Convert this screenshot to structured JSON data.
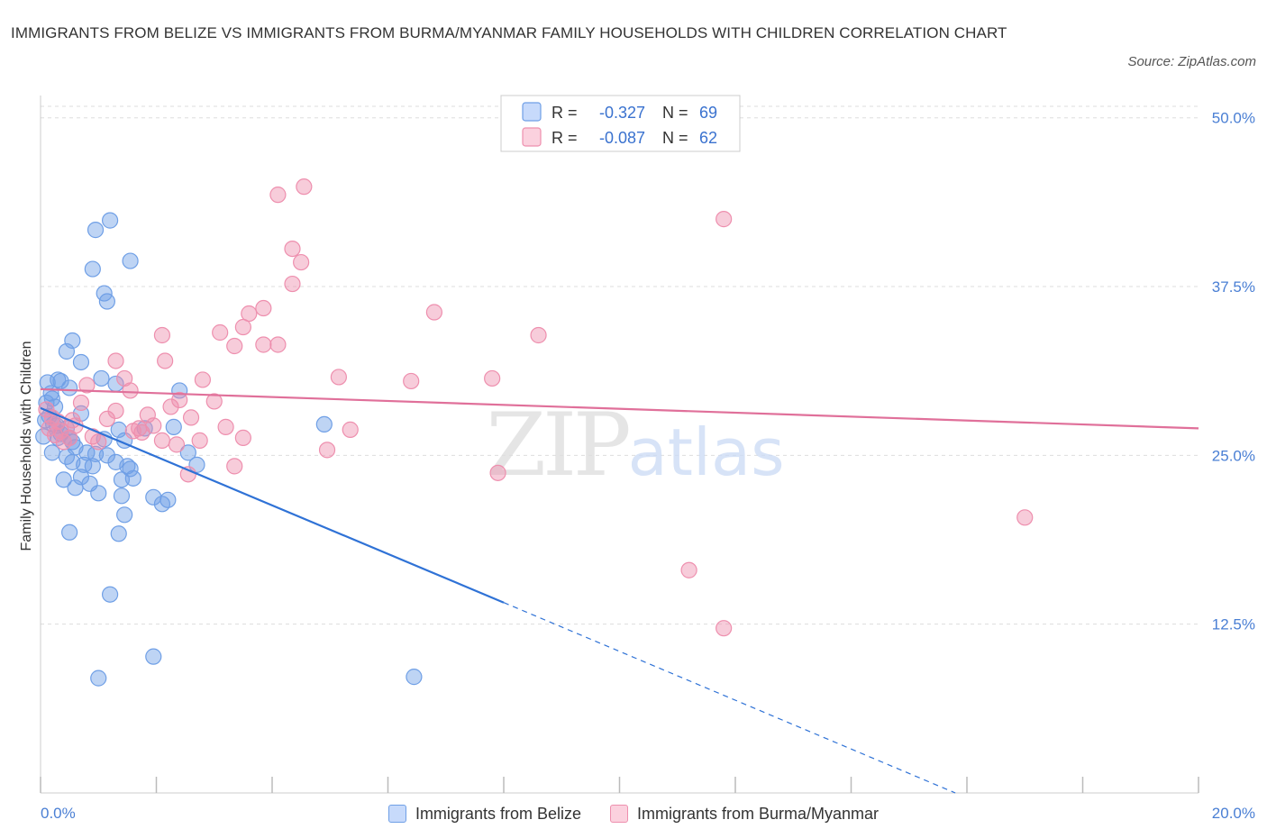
{
  "chart_data": {
    "type": "scatter",
    "title": "IMMIGRANTS FROM BELIZE VS IMMIGRANTS FROM BURMA/MYANMAR FAMILY HOUSEHOLDS WITH CHILDREN CORRELATION CHART",
    "source": "Source: ZipAtlas.com",
    "xlabel": "",
    "ylabel": "Family Households with Children",
    "xlim": [
      0,
      20
    ],
    "ylim": [
      0,
      51.25
    ],
    "x_tick_labels": [
      "0.0%",
      "20.0%"
    ],
    "y_ticks": [
      12.5,
      25.0,
      37.5,
      50.0
    ],
    "y_tick_labels": [
      "12.5%",
      "25.0%",
      "37.5%",
      "50.0%"
    ],
    "watermark": "ZIPatlas",
    "colors": {
      "belize": "#6f9fe6",
      "burma": "#ee8fae",
      "belize_line": "#2f72d6",
      "burma_line": "#e0709a"
    },
    "legend": [
      {
        "r_label": "R =",
        "r_value": "-0.327",
        "n_label": "N =",
        "n_value": "69"
      },
      {
        "r_label": "R =",
        "r_value": "-0.087",
        "n_label": "N =",
        "n_value": "62"
      }
    ],
    "series": [
      {
        "name": "Immigrants from Belize",
        "trend": {
          "x": [
            0,
            8.0,
            15.8
          ],
          "y": [
            28.5,
            14.1,
            0.0
          ],
          "solid_until": 8.0
        },
        "points": [
          [
            0.12,
            30.4
          ],
          [
            0.18,
            29.6
          ],
          [
            0.2,
            29.2
          ],
          [
            0.25,
            28.6
          ],
          [
            0.1,
            28.9
          ],
          [
            0.15,
            27.9
          ],
          [
            0.08,
            27.6
          ],
          [
            0.22,
            27.3
          ],
          [
            0.28,
            27.2
          ],
          [
            0.35,
            26.6
          ],
          [
            0.05,
            26.4
          ],
          [
            0.3,
            26.3
          ],
          [
            0.45,
            27.0
          ],
          [
            0.5,
            26.3
          ],
          [
            0.2,
            25.2
          ],
          [
            0.3,
            30.6
          ],
          [
            0.35,
            30.5
          ],
          [
            0.5,
            30.0
          ],
          [
            0.7,
            28.1
          ],
          [
            0.55,
            26.0
          ],
          [
            0.6,
            25.6
          ],
          [
            0.45,
            24.9
          ],
          [
            0.55,
            24.5
          ],
          [
            0.75,
            24.3
          ],
          [
            0.9,
            24.2
          ],
          [
            0.7,
            23.4
          ],
          [
            0.4,
            23.2
          ],
          [
            0.6,
            22.6
          ],
          [
            0.85,
            22.9
          ],
          [
            1.0,
            22.2
          ],
          [
            0.8,
            25.2
          ],
          [
            0.95,
            25.1
          ],
          [
            1.15,
            25.0
          ],
          [
            1.3,
            24.5
          ],
          [
            1.5,
            24.2
          ],
          [
            1.55,
            24.0
          ],
          [
            1.6,
            23.3
          ],
          [
            1.4,
            23.2
          ],
          [
            1.1,
            26.2
          ],
          [
            1.35,
            26.9
          ],
          [
            1.45,
            26.1
          ],
          [
            1.8,
            27.0
          ],
          [
            1.95,
            21.9
          ],
          [
            2.2,
            21.7
          ],
          [
            2.1,
            21.4
          ],
          [
            2.55,
            25.2
          ],
          [
            2.7,
            24.3
          ],
          [
            2.3,
            27.1
          ],
          [
            2.4,
            29.8
          ],
          [
            1.05,
            30.7
          ],
          [
            1.3,
            30.3
          ],
          [
            0.7,
            31.9
          ],
          [
            0.45,
            32.7
          ],
          [
            0.55,
            33.5
          ],
          [
            1.1,
            37.0
          ],
          [
            1.15,
            36.4
          ],
          [
            0.9,
            38.8
          ],
          [
            1.55,
            39.4
          ],
          [
            0.95,
            41.7
          ],
          [
            1.2,
            42.4
          ],
          [
            1.4,
            22.0
          ],
          [
            1.45,
            20.6
          ],
          [
            1.35,
            19.2
          ],
          [
            0.5,
            19.3
          ],
          [
            1.2,
            14.7
          ],
          [
            1.0,
            8.5
          ],
          [
            1.95,
            10.1
          ],
          [
            6.45,
            8.6
          ],
          [
            4.9,
            27.3
          ]
        ]
      },
      {
        "name": "Immigrants from Burma/Myanmar",
        "trend": {
          "x": [
            0,
            20
          ],
          "y": [
            29.9,
            27.0
          ]
        },
        "points": [
          [
            0.1,
            28.4
          ],
          [
            0.2,
            27.8
          ],
          [
            0.3,
            27.5
          ],
          [
            0.15,
            27.0
          ],
          [
            0.35,
            26.8
          ],
          [
            0.25,
            26.5
          ],
          [
            0.4,
            26.0
          ],
          [
            0.5,
            26.3
          ],
          [
            0.55,
            27.6
          ],
          [
            0.7,
            28.9
          ],
          [
            0.8,
            30.2
          ],
          [
            0.9,
            26.4
          ],
          [
            1.0,
            26.0
          ],
          [
            1.15,
            27.7
          ],
          [
            1.3,
            28.3
          ],
          [
            1.45,
            30.7
          ],
          [
            1.55,
            29.8
          ],
          [
            1.7,
            27.0
          ],
          [
            1.85,
            28.0
          ],
          [
            1.75,
            26.7
          ],
          [
            1.95,
            27.2
          ],
          [
            2.1,
            26.1
          ],
          [
            2.25,
            28.6
          ],
          [
            2.4,
            29.1
          ],
          [
            2.6,
            27.8
          ],
          [
            2.75,
            26.1
          ],
          [
            2.55,
            23.6
          ],
          [
            2.8,
            30.6
          ],
          [
            3.0,
            29.0
          ],
          [
            3.2,
            27.1
          ],
          [
            3.35,
            24.2
          ],
          [
            3.5,
            26.3
          ],
          [
            1.3,
            32.0
          ],
          [
            2.15,
            32.0
          ],
          [
            2.1,
            33.9
          ],
          [
            3.1,
            34.1
          ],
          [
            3.35,
            33.1
          ],
          [
            3.5,
            34.5
          ],
          [
            3.6,
            35.5
          ],
          [
            3.85,
            35.9
          ],
          [
            4.1,
            33.2
          ],
          [
            4.35,
            37.7
          ],
          [
            4.5,
            39.3
          ],
          [
            4.35,
            40.3
          ],
          [
            4.1,
            44.3
          ],
          [
            4.55,
            44.9
          ],
          [
            4.95,
            25.4
          ],
          [
            5.15,
            30.8
          ],
          [
            5.35,
            26.9
          ],
          [
            6.4,
            30.5
          ],
          [
            6.8,
            35.6
          ],
          [
            7.8,
            30.7
          ],
          [
            7.9,
            23.7
          ],
          [
            8.6,
            33.9
          ],
          [
            11.8,
            42.5
          ],
          [
            11.2,
            16.5
          ],
          [
            11.8,
            12.2
          ],
          [
            17.0,
            20.4
          ],
          [
            0.6,
            27.2
          ],
          [
            1.6,
            26.8
          ],
          [
            2.35,
            25.8
          ],
          [
            3.85,
            33.2
          ]
        ]
      }
    ]
  },
  "bottom_legend": [
    {
      "label": "Immigrants from Belize"
    },
    {
      "label": "Immigrants from Burma/Myanmar"
    }
  ]
}
